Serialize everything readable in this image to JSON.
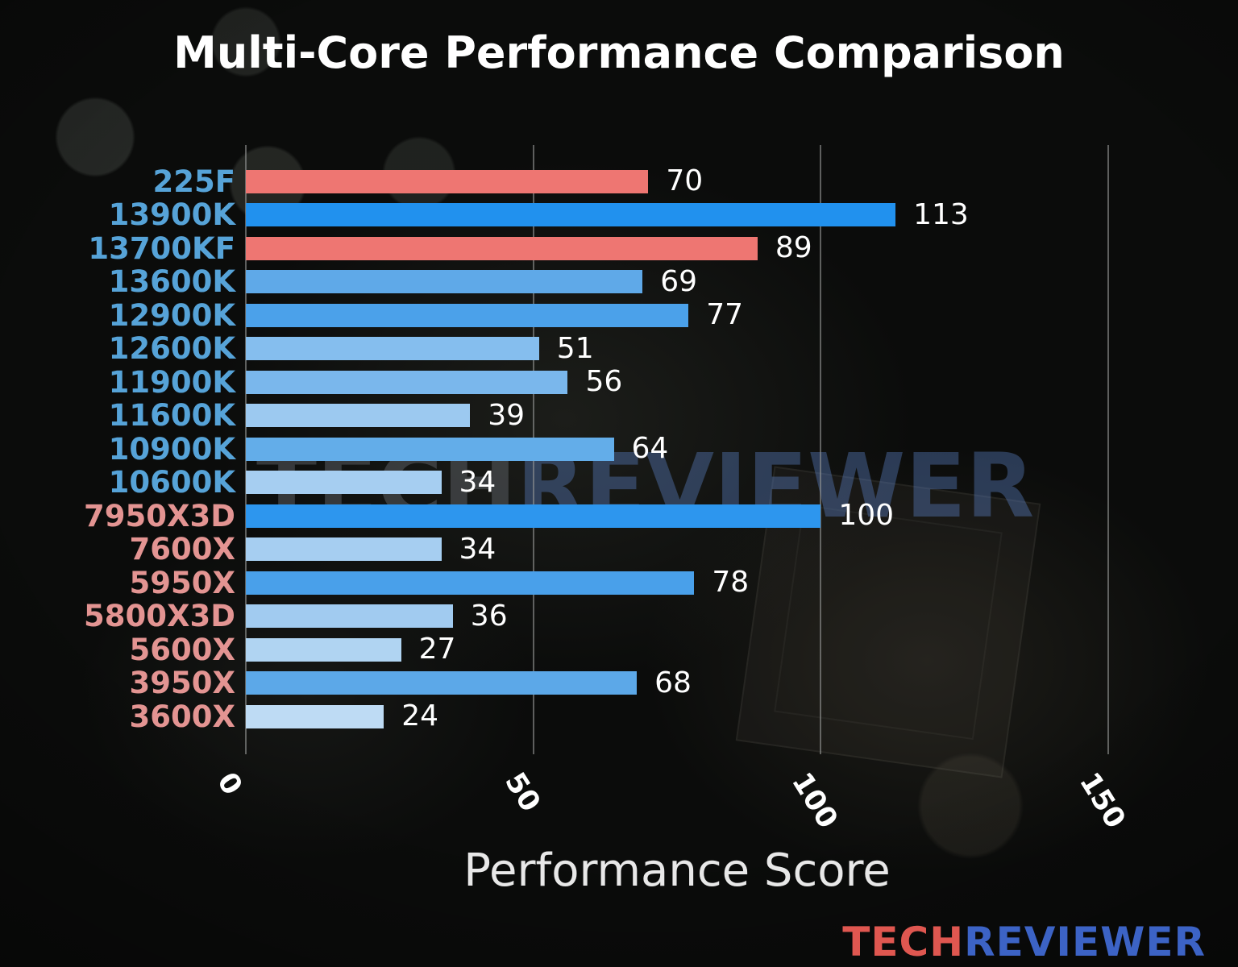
{
  "chart_data": {
    "type": "bar",
    "orientation": "horizontal",
    "title": "Multi-Core Performance Comparison",
    "xlabel": "Performance Score",
    "xlim": [
      0,
      150
    ],
    "xticks": [
      0,
      50,
      100,
      150
    ],
    "grid": true,
    "legend": false,
    "categories": [
      "225F",
      "13900K",
      "13700KF",
      "13600K",
      "12900K",
      "12600K",
      "11900K",
      "11600K",
      "10900K",
      "10600K",
      "7950X3D",
      "7600X",
      "5950X",
      "5800X3D",
      "5600X",
      "3950X",
      "3600X"
    ],
    "values": [
      70,
      113,
      89,
      69,
      77,
      51,
      56,
      39,
      64,
      34,
      100,
      34,
      78,
      36,
      27,
      68,
      24
    ],
    "bar_colors": [
      "#ee7672",
      "#2191ee",
      "#ee7672",
      "#5fa9e8",
      "#4ba1ea",
      "#85beee",
      "#7ab7ec",
      "#9cc9f0",
      "#63ade9",
      "#a6cef1",
      "#2d96ee",
      "#a6cef1",
      "#49a0ea",
      "#a1cbf0",
      "#b0d4f2",
      "#5ca8e8",
      "#bedbf4"
    ],
    "category_label_colors": [
      "#56a3d8",
      "#56a3d8",
      "#56a3d8",
      "#56a3d8",
      "#56a3d8",
      "#56a3d8",
      "#56a3d8",
      "#56a3d8",
      "#56a3d8",
      "#56a3d8",
      "#e39492",
      "#e39492",
      "#e39492",
      "#e39492",
      "#e39492",
      "#e39492",
      "#e39492"
    ],
    "value_label_color": "#ffffff",
    "tick_label_color": "#ffffff",
    "gridline_color": "#969896"
  },
  "branding": {
    "watermark": {
      "tech": "TECH",
      "reviewer": "REVIEWER",
      "tech_color": "rgba(110,115,122,0.42)",
      "reviewer_color": "rgba(95,135,205,0.38)"
    },
    "logo": {
      "tech": "TECH",
      "reviewer": "REVIEWER",
      "tech_color": "#df5750",
      "reviewer_color": "#3c63c5"
    }
  }
}
